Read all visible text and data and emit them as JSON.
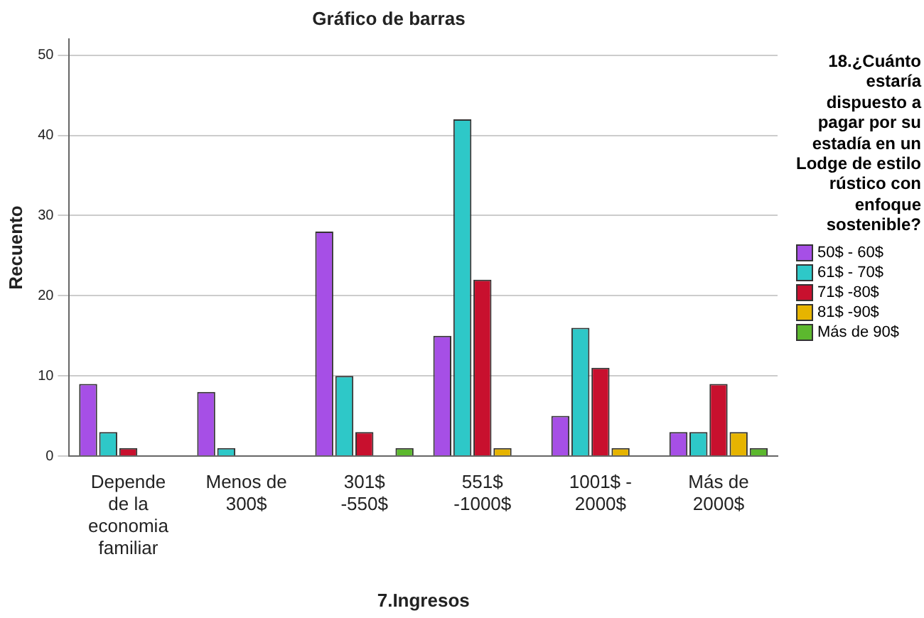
{
  "chart_data": {
    "type": "bar",
    "title": "Gráfico de barras",
    "xlabel": "7.Ingresos",
    "ylabel": "Recuento",
    "legend_title": "18.¿Cuánto estaría dispuesto a pagar por su estadía en un Lodge de estilo rústico con enfoque sostenible?",
    "categories": [
      "Depende de la economia familiar",
      "Menos de 300$",
      "301$ -550$",
      "551$ -1000$",
      "1001$ - 2000$",
      "Más de 2000$"
    ],
    "series": [
      {
        "name": "50$ - 60$",
        "color": "#a64fe6",
        "values": [
          9,
          8,
          28,
          15,
          5,
          3
        ]
      },
      {
        "name": "61$ - 70$",
        "color": "#2ec8c8",
        "values": [
          3,
          1,
          10,
          42,
          16,
          3
        ]
      },
      {
        "name": "71$ -80$",
        "color": "#c8102e",
        "values": [
          1,
          0,
          3,
          22,
          11,
          9
        ]
      },
      {
        "name": "81$ -90$",
        "color": "#e6b400",
        "values": [
          0,
          0,
          0,
          1,
          1,
          3
        ]
      },
      {
        "name": "Más de 90$",
        "color": "#5cb82e",
        "values": [
          0,
          0,
          1,
          0,
          0,
          1
        ]
      }
    ],
    "ylim": [
      0,
      52
    ],
    "yticks": [
      0,
      10,
      20,
      30,
      40,
      50
    ],
    "grid": "y",
    "legend": "right"
  }
}
